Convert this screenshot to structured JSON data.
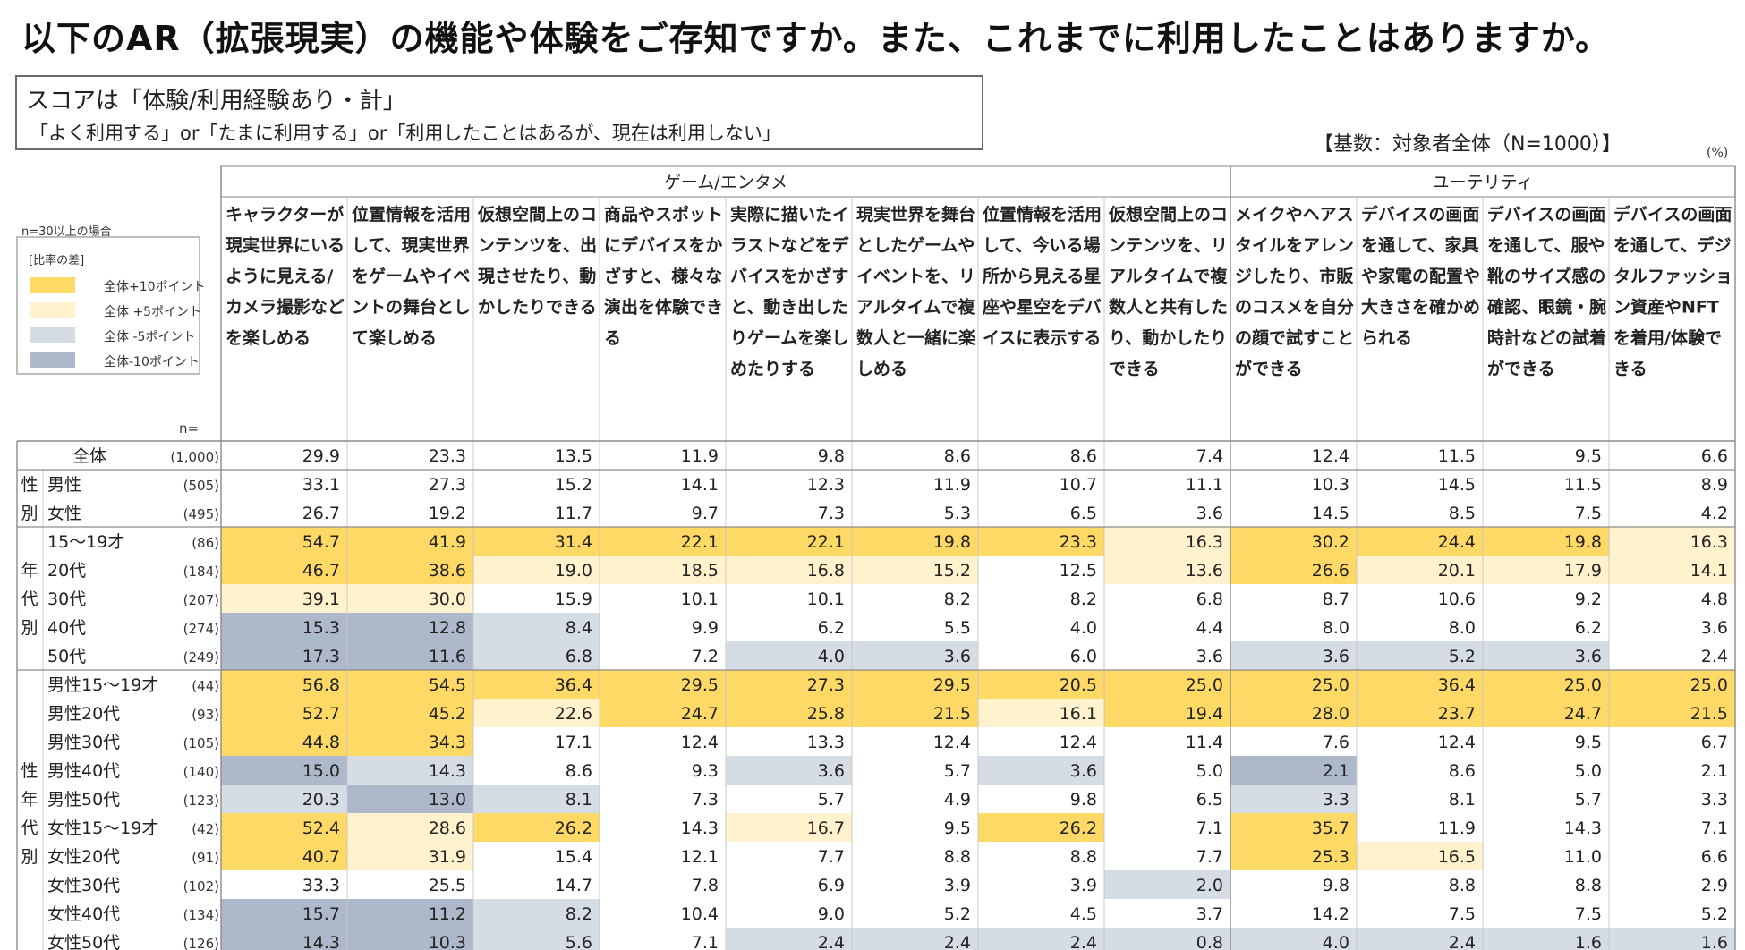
{
  "title": "以下のAR（拡張現実）の機能や体験をご存知ですか。また、これまでに利用したことはありますか。",
  "score_box": {
    "line1": "スコアは「体験/利用経験あり・計」",
    "line2": "「よく利用する」or「たまに利用する」or「利用したことはあるが、現在は利用しない」"
  },
  "base_note": "【基数：対象者全体（N=1000）】",
  "unit_note": "(%)",
  "legend": {
    "caption": "n=30以上の場合",
    "title": "[比率の差]",
    "items": [
      {
        "label": "全体+10ポイント",
        "color": "#ffd966"
      },
      {
        "label": "全体 +5ポイント",
        "color": "#fff2cc"
      },
      {
        "label": "全体 -5ポイント",
        "color": "#d6dce4"
      },
      {
        "label": "全体-10ポイント",
        "color": "#adb9ca"
      }
    ]
  },
  "n_label": "n=",
  "chart_data": {
    "type": "table",
    "groups": [
      {
        "name": "ゲーム/エンタメ",
        "span": 8
      },
      {
        "name": "ユーテリティ",
        "span": 4
      }
    ],
    "columns": [
      "キャラクターが現実世界にいるように見える/カメラ撮影などを楽しめる",
      "位置情報を活用して、現実世界をゲームやイベントの舞台として楽しめる",
      "仮想空間上のコンテンツを、出現させたり、動かしたりできる",
      "商品やスポットにデバイスをかざすと、様々な演出を体験できる",
      "実際に描いたイラストなどをデバイスをかざすと、動き出したりゲームを楽しめたりする",
      "現実世界を舞台としたゲームやイベントを、リアルタイムで複数人と一緒に楽しめる",
      "位置情報を活用して、今いる場所から見える星座や星空をデバイスに表示する",
      "仮想空間上のコンテンツを、リアルタイムで複数人と共有したり、動かしたりできる",
      "メイクやヘアスタイルをアレンジしたり、市販のコスメを自分の顔で試すことができる",
      "デバイスの画面を通して、家具や家電の配置や大きさを確かめられる",
      "デバイスの画面を通して、服や靴のサイズ感の確認、眼鏡・腕時計などの試着ができる",
      "デバイスの画面を通して、デジタルファッション資産やNFTを着用/体験できる"
    ],
    "side_groups": [
      {
        "label": "",
        "rows": [
          0
        ]
      },
      {
        "label": "性別",
        "rows": [
          1,
          2
        ]
      },
      {
        "label": "年代別",
        "rows": [
          3,
          4,
          5,
          6,
          7
        ]
      },
      {
        "label": "性年代別",
        "rows": [
          8,
          9,
          10,
          11,
          12,
          13,
          14,
          15,
          16,
          17
        ]
      }
    ],
    "rows": [
      {
        "label": "全体",
        "n": "(1,000)",
        "values": [
          29.9,
          23.3,
          13.5,
          11.9,
          9.8,
          8.6,
          8.6,
          7.4,
          12.4,
          11.5,
          9.5,
          6.6
        ]
      },
      {
        "label": "男性",
        "n": "(505)",
        "values": [
          33.1,
          27.3,
          15.2,
          14.1,
          12.3,
          11.9,
          10.7,
          11.1,
          10.3,
          14.5,
          11.5,
          8.9
        ]
      },
      {
        "label": "女性",
        "n": "(495)",
        "values": [
          26.7,
          19.2,
          11.7,
          9.7,
          7.3,
          5.3,
          6.5,
          3.6,
          14.5,
          8.5,
          7.5,
          4.2
        ]
      },
      {
        "label": "15～19才",
        "n": "(86)",
        "values": [
          54.7,
          41.9,
          31.4,
          22.1,
          22.1,
          19.8,
          23.3,
          16.3,
          30.2,
          24.4,
          19.8,
          16.3
        ]
      },
      {
        "label": "20代",
        "n": "(184)",
        "values": [
          46.7,
          38.6,
          19.0,
          18.5,
          16.8,
          15.2,
          12.5,
          13.6,
          26.6,
          20.1,
          17.9,
          14.1
        ]
      },
      {
        "label": "30代",
        "n": "(207)",
        "values": [
          39.1,
          30.0,
          15.9,
          10.1,
          10.1,
          8.2,
          8.2,
          6.8,
          8.7,
          10.6,
          9.2,
          4.8
        ]
      },
      {
        "label": "40代",
        "n": "(274)",
        "values": [
          15.3,
          12.8,
          8.4,
          9.9,
          6.2,
          5.5,
          4.0,
          4.4,
          8.0,
          8.0,
          6.2,
          3.6
        ]
      },
      {
        "label": "50代",
        "n": "(249)",
        "values": [
          17.3,
          11.6,
          6.8,
          7.2,
          4.0,
          3.6,
          6.0,
          3.6,
          3.6,
          5.2,
          3.6,
          2.4
        ]
      },
      {
        "label": "男性15～19才",
        "n": "(44)",
        "values": [
          56.8,
          54.5,
          36.4,
          29.5,
          27.3,
          29.5,
          20.5,
          25.0,
          25.0,
          36.4,
          25.0,
          25.0
        ]
      },
      {
        "label": "男性20代",
        "n": "(93)",
        "values": [
          52.7,
          45.2,
          22.6,
          24.7,
          25.8,
          21.5,
          16.1,
          19.4,
          28.0,
          23.7,
          24.7,
          21.5
        ]
      },
      {
        "label": "男性30代",
        "n": "(105)",
        "values": [
          44.8,
          34.3,
          17.1,
          12.4,
          13.3,
          12.4,
          12.4,
          11.4,
          7.6,
          12.4,
          9.5,
          6.7
        ]
      },
      {
        "label": "男性40代",
        "n": "(140)",
        "values": [
          15.0,
          14.3,
          8.6,
          9.3,
          3.6,
          5.7,
          3.6,
          5.0,
          2.1,
          8.6,
          5.0,
          2.1
        ]
      },
      {
        "label": "男性50代",
        "n": "(123)",
        "values": [
          20.3,
          13.0,
          8.1,
          7.3,
          5.7,
          4.9,
          9.8,
          6.5,
          3.3,
          8.1,
          5.7,
          3.3
        ]
      },
      {
        "label": "女性15～19才",
        "n": "(42)",
        "values": [
          52.4,
          28.6,
          26.2,
          14.3,
          16.7,
          9.5,
          26.2,
          7.1,
          35.7,
          11.9,
          14.3,
          7.1
        ]
      },
      {
        "label": "女性20代",
        "n": "(91)",
        "values": [
          40.7,
          31.9,
          15.4,
          12.1,
          7.7,
          8.8,
          8.8,
          7.7,
          25.3,
          16.5,
          11.0,
          6.6
        ]
      },
      {
        "label": "女性30代",
        "n": "(102)",
        "values": [
          33.3,
          25.5,
          14.7,
          7.8,
          6.9,
          3.9,
          3.9,
          2.0,
          9.8,
          8.8,
          8.8,
          2.9
        ]
      },
      {
        "label": "女性40代",
        "n": "(134)",
        "values": [
          15.7,
          11.2,
          8.2,
          10.4,
          9.0,
          5.2,
          4.5,
          3.7,
          14.2,
          7.5,
          7.5,
          5.2
        ]
      },
      {
        "label": "女性50代",
        "n": "(126)",
        "values": [
          14.3,
          10.3,
          5.6,
          7.1,
          2.4,
          2.4,
          2.4,
          0.8,
          4.0,
          2.4,
          1.6,
          1.6
        ]
      }
    ]
  }
}
